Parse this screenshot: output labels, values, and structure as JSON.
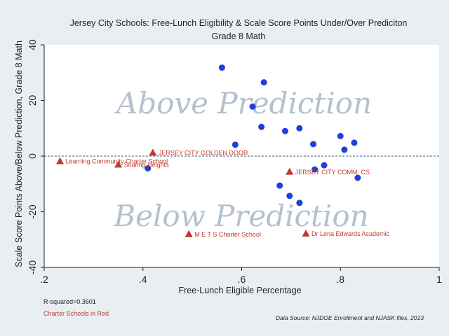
{
  "chart_data": {
    "type": "scatter",
    "title": "Jersey City Schools: Free-Lunch Eligibility & Scale Score Points Under/Over Prediciton",
    "subtitle": "Grade 8 Math",
    "xlabel": "Free-Lunch Eligible Percentage",
    "ylabel": "Scale Score Points Above/Below Prediction, Grade 8 Math",
    "xlim": [
      0.2,
      1.0
    ],
    "ylim": [
      -40,
      40
    ],
    "x_ticks": [
      0.2,
      0.4,
      0.6,
      0.8,
      1.0
    ],
    "x_tick_labels": [
      ".2",
      ".4",
      ".6",
      ".8",
      "1"
    ],
    "y_ticks": [
      -40,
      -20,
      0,
      20,
      40
    ],
    "y_tick_labels": [
      "-40",
      "-20",
      "0",
      "20",
      "40"
    ],
    "reference_line_y": 0,
    "grid": false,
    "watermark_above": "Above Prediction",
    "watermark_below": "Below Prediction",
    "public_schools": {
      "color": "#1f3fd6",
      "marker": "circle",
      "points": [
        {
          "x": 0.56,
          "y": 31.8
        },
        {
          "x": 0.645,
          "y": 26.5
        },
        {
          "x": 0.622,
          "y": 17.8
        },
        {
          "x": 0.64,
          "y": 10.5
        },
        {
          "x": 0.688,
          "y": 9.0
        },
        {
          "x": 0.717,
          "y": 10.0
        },
        {
          "x": 0.587,
          "y": 4.1
        },
        {
          "x": 0.8,
          "y": 7.2
        },
        {
          "x": 0.828,
          "y": 4.8
        },
        {
          "x": 0.808,
          "y": 2.3
        },
        {
          "x": 0.745,
          "y": 4.3
        },
        {
          "x": 0.41,
          "y": -4.4
        },
        {
          "x": 0.748,
          "y": -4.8
        },
        {
          "x": 0.767,
          "y": -3.3
        },
        {
          "x": 0.835,
          "y": -7.8
        },
        {
          "x": 0.677,
          "y": -10.6
        },
        {
          "x": 0.697,
          "y": -14.3
        },
        {
          "x": 0.717,
          "y": -16.8
        }
      ]
    },
    "charter_schools": {
      "color": "#c0392b",
      "marker": "triangle",
      "points": [
        {
          "x": 0.232,
          "y": -1.8,
          "label": "Learning Community Charter School"
        },
        {
          "x": 0.35,
          "y": -3.0,
          "label": "Soaring Heights"
        },
        {
          "x": 0.42,
          "y": 1.3,
          "label": "JERSEY CITY GOLDEN DOOR"
        },
        {
          "x": 0.697,
          "y": -5.6,
          "label": "JERSEY CITY COMM. CS"
        },
        {
          "x": 0.493,
          "y": -28.0,
          "label": "M E T S Charter School"
        },
        {
          "x": 0.73,
          "y": -27.8,
          "label": "Dr Lena Edwards Academic"
        }
      ]
    }
  },
  "notes": {
    "r_squared": "R-squared=0.3601",
    "charter_note": "Charter Schools in Red",
    "charter_note_color": "#c0392b",
    "source": "Data Source: NJDOE Enrollment and NJASK files, 2013"
  }
}
